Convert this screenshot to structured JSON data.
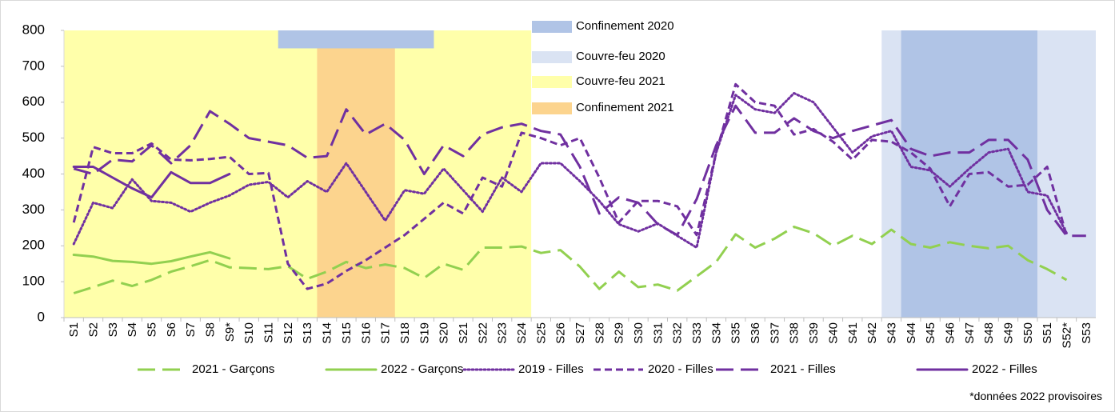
{
  "chart_data": {
    "type": "line",
    "categories": [
      "S1",
      "S2",
      "S3",
      "S4",
      "S5",
      "S6",
      "S7",
      "S8",
      "S9*",
      "S10",
      "S11",
      "S12",
      "S13",
      "S14",
      "S15",
      "S16",
      "S17",
      "S18",
      "S19",
      "S20",
      "S21",
      "S22",
      "S23",
      "S24",
      "S25",
      "S26",
      "S27",
      "S28",
      "S29",
      "S30",
      "S31",
      "S32",
      "S33",
      "S34",
      "S35",
      "S36",
      "S37",
      "S38",
      "S39",
      "S40",
      "S41",
      "S42",
      "S43",
      "S44",
      "S45",
      "S46",
      "S47",
      "S48",
      "S49",
      "S50",
      "S51",
      "S52*",
      "S53"
    ],
    "ylim": [
      0,
      800
    ],
    "yticks": [
      0,
      100,
      200,
      300,
      400,
      500,
      600,
      700,
      800
    ],
    "series": [
      {
        "name": "2021 - Garçons",
        "color": "#92d050",
        "dash": "long",
        "values": [
          68,
          85,
          103,
          88,
          105,
          128,
          143,
          160,
          140,
          138,
          135,
          143,
          108,
          128,
          155,
          138,
          148,
          138,
          110,
          150,
          133,
          195,
          195,
          198,
          180,
          188,
          142,
          80,
          128,
          85,
          92,
          75,
          115,
          155,
          232,
          195,
          220,
          253,
          235,
          200,
          228,
          205,
          245,
          205,
          195,
          210,
          200,
          193,
          200,
          160,
          135,
          105,
          null
        ]
      },
      {
        "name": "2022 - Garçons",
        "color": "#92d050",
        "dash": "solid",
        "values": [
          175,
          170,
          158,
          155,
          150,
          157,
          170,
          182,
          165,
          null,
          null,
          null,
          null,
          null,
          null,
          null,
          null,
          null,
          null,
          null,
          null,
          null,
          null,
          null,
          null,
          null,
          null,
          null,
          null,
          null,
          null,
          null,
          null,
          null,
          null,
          null,
          null,
          null,
          null,
          null,
          null,
          null,
          null,
          null,
          null,
          null,
          null,
          null,
          null,
          null,
          null,
          null,
          null
        ]
      },
      {
        "name": "2019 - Filles",
        "color": "#7030a0",
        "dash": "dot",
        "values": [
          205,
          320,
          305,
          385,
          325,
          320,
          295,
          320,
          340,
          370,
          378,
          335,
          380,
          350,
          430,
          350,
          270,
          355,
          345,
          415,
          355,
          295,
          390,
          350,
          430,
          430,
          380,
          325,
          260,
          240,
          262,
          228,
          195,
          460,
          620,
          580,
          570,
          625,
          600,
          530,
          460,
          505,
          520,
          420,
          410,
          365,
          415,
          460,
          470,
          350,
          340,
          235,
          null
        ]
      },
      {
        "name": "2020 - Filles",
        "color": "#7030a0",
        "dash": "short",
        "values": [
          265,
          475,
          458,
          458,
          485,
          440,
          438,
          442,
          448,
          400,
          403,
          150,
          80,
          95,
          130,
          160,
          195,
          230,
          275,
          320,
          290,
          390,
          365,
          515,
          500,
          480,
          500,
          390,
          265,
          325,
          325,
          310,
          230,
          460,
          650,
          600,
          590,
          510,
          525,
          490,
          440,
          495,
          490,
          460,
          415,
          310,
          400,
          405,
          365,
          370,
          420,
          228,
          null
        ]
      },
      {
        "name": "2021 - Filles",
        "color": "#7030a0",
        "dash": "long",
        "values": [
          415,
          400,
          440,
          435,
          480,
          430,
          480,
          575,
          540,
          500,
          490,
          480,
          445,
          450,
          580,
          510,
          540,
          495,
          400,
          480,
          450,
          510,
          530,
          540,
          520,
          510,
          420,
          290,
          335,
          320,
          260,
          230,
          330,
          480,
          590,
          515,
          515,
          555,
          520,
          500,
          520,
          535,
          550,
          470,
          450,
          460,
          460,
          495,
          495,
          440,
          300,
          228,
          228
        ]
      },
      {
        "name": "2022 - Filles",
        "color": "#7030a0",
        "dash": "solid",
        "values": [
          420,
          420,
          390,
          360,
          335,
          405,
          375,
          375,
          400,
          null,
          null,
          null,
          null,
          null,
          null,
          null,
          null,
          null,
          null,
          null,
          null,
          null,
          null,
          null,
          null,
          null,
          null,
          null,
          null,
          null,
          null,
          null,
          null,
          null,
          null,
          null,
          null,
          null,
          null,
          null,
          null,
          null,
          null,
          null,
          null,
          null,
          null,
          null,
          null,
          null,
          null,
          null,
          null
        ]
      }
    ],
    "regions": [
      {
        "name": "Confinement 2020",
        "color": "#b0c4e6",
        "spans": [
          {
            "from": "S12",
            "to": "S19",
            "ylim": [
              750,
              800
            ]
          },
          {
            "from": "S44",
            "to": "S50"
          }
        ]
      },
      {
        "name": "Couvre-feu 2020",
        "color": "#dae3f3",
        "spans": [
          {
            "from": "S43",
            "to": "S53"
          }
        ]
      },
      {
        "name": "Couvre-feu 2021",
        "color": "#ffffaa",
        "spans": [
          {
            "from": "S1",
            "to": "S24"
          }
        ]
      },
      {
        "name": "Confinement 2021",
        "color": "#fcd48e",
        "spans": [
          {
            "from": "S14",
            "to": "S17"
          }
        ]
      }
    ],
    "legend": "bottom",
    "note": "*données 2022 provisoires"
  }
}
